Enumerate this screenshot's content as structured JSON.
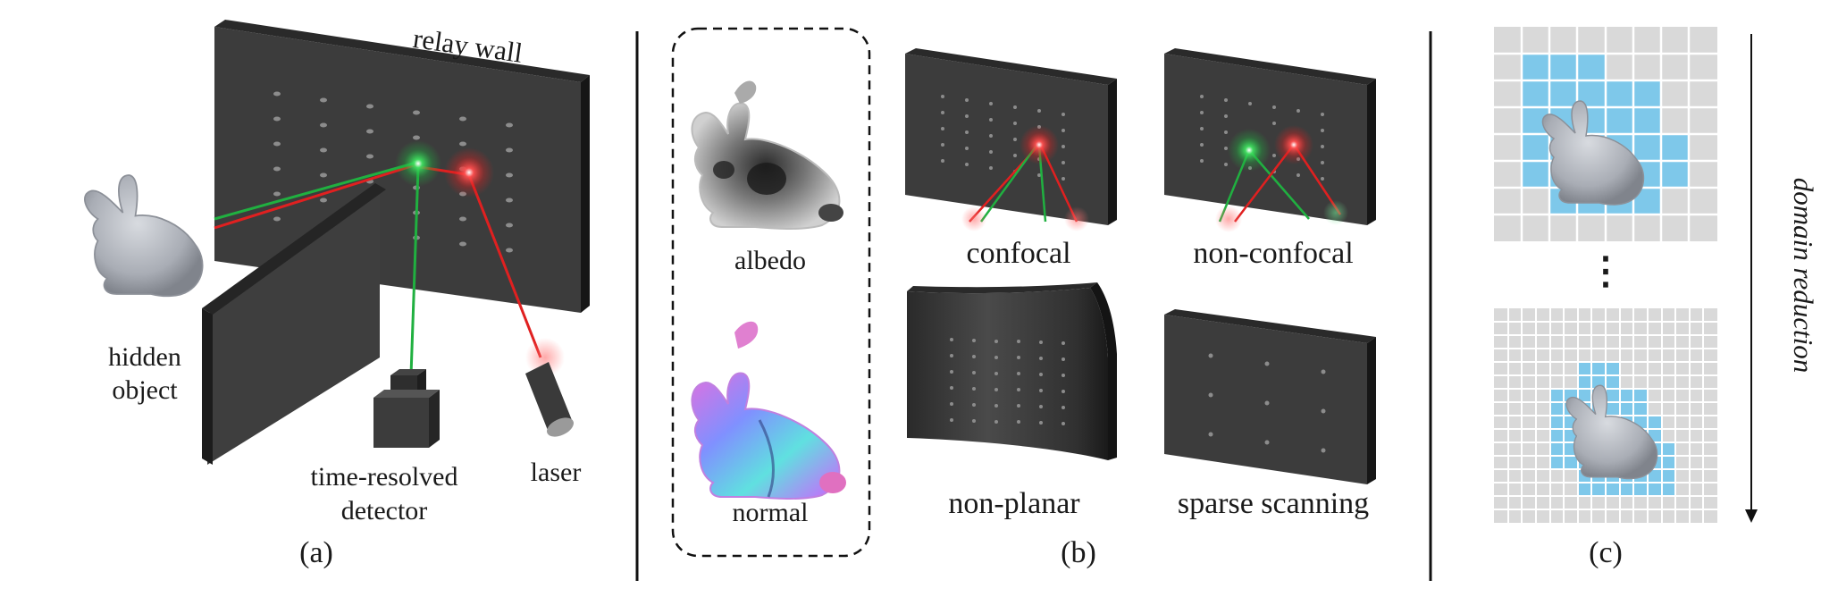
{
  "panel_a": {
    "relay_wall": "relay wall",
    "hidden_object_line1": "hidden",
    "hidden_object_line2": "object",
    "detector_line1": "time-resolved",
    "detector_line2": "detector",
    "laser": "laser",
    "caption": "(a)"
  },
  "panel_b": {
    "albedo": "albedo",
    "normal": "normal",
    "confocal": "confocal",
    "non_confocal": "non-confocal",
    "non_planar": "non-planar",
    "sparse_scanning": "sparse scanning",
    "caption": "(b)"
  },
  "panel_c": {
    "domain_reduction": "domain reduction",
    "ellipsis": "⋮",
    "caption": "(c)"
  },
  "colors": {
    "laser_red": "#e02020",
    "detector_green": "#20b040",
    "grid_blue": "#7ec8ea",
    "wall_dark": "#3c3c3c"
  }
}
